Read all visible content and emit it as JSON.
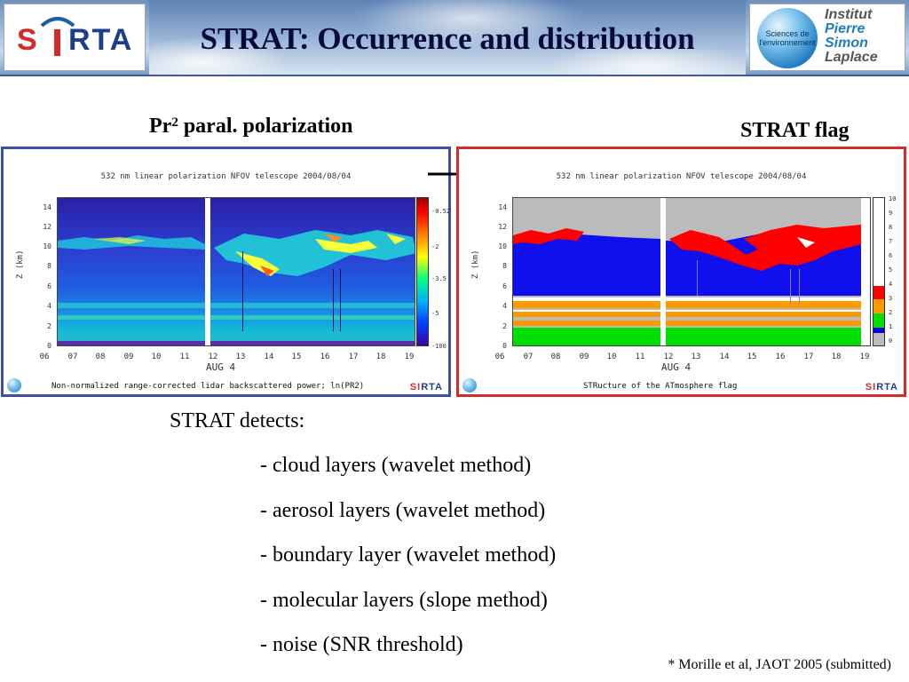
{
  "header": {
    "title": "STRAT: Occurrence and distribution",
    "left_logo": {
      "text_left": "S",
      "text_right": "RTA"
    },
    "right_logo": {
      "globe_text": "Sciences de l'environnement",
      "lines": [
        "Institut",
        "Pierre",
        "Simon",
        "Laplace"
      ]
    }
  },
  "labels": {
    "left_prefix": "Pr",
    "left_sup": "2",
    "left_suffix": " paral. polarization",
    "right": "STRAT flag"
  },
  "panels": {
    "left": {
      "plot_title": "532 nm linear polarization NFOV telescope 2004/08/04",
      "ylabel": "Z (km)",
      "xlabel": "AUG  4",
      "caption": "Non-normalized range-corrected lidar backscattered power; ln(PR2)",
      "colorbar_ticks": [
        "-0.52",
        "-2",
        "-3.5",
        "-5",
        "-100"
      ]
    },
    "right": {
      "plot_title": "532 nm linear polarization NFOV telescope 2004/08/04",
      "ylabel": "Z (km)",
      "xlabel": "AUG  4",
      "caption": "STRucture of the ATmosphere flag",
      "flag_ticks": [
        "10",
        "9",
        "8",
        "7",
        "6",
        "5",
        "4",
        "3",
        "2",
        "1",
        "0"
      ]
    },
    "yticks": [
      "14",
      "12",
      "10",
      "8",
      "6",
      "4",
      "2",
      "0"
    ],
    "xticks": [
      "06",
      "07",
      "08",
      "09",
      "10",
      "11",
      "12",
      "13",
      "14",
      "15",
      "16",
      "17",
      "18",
      "19"
    ],
    "logo_small": {
      "left": "S",
      "mid": "I",
      "right": "RTA"
    }
  },
  "body": {
    "heading": "STRAT detects:",
    "items": [
      "- cloud layers (wavelet method)",
      "- aerosol layers (wavelet method)",
      "- boundary layer (wavelet method)",
      "- molecular layers (slope method)",
      "- noise (SNR threshold)"
    ]
  },
  "reference": "* Morille et al, JAOT 2005 (submitted)",
  "colors": {
    "title": "#050a3a",
    "left_border": "#3f4ea8",
    "right_border": "#d42a2a",
    "flag_cloud": "#ff0000",
    "flag_aerosol": "#ff9900",
    "flag_boundary": "#00dd00",
    "flag_molecular": "#0000ee",
    "flag_noise": "#bbbbbb"
  }
}
